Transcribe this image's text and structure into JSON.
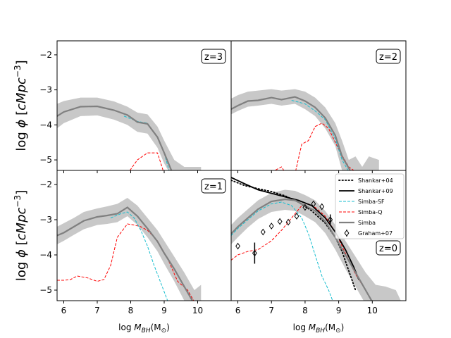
{
  "chart_data": {
    "type": "line",
    "title": "",
    "xlabel_prefix": "log ",
    "xlabel_math": "M",
    "xlabel_sub": "BH",
    "xlabel_unit": "(M",
    "xlabel_unit_sub": "⊙",
    "xlabel_unit_close": ")",
    "ylabel_prefix": "log ",
    "ylabel_phi": "ϕ",
    "ylabel_bracket_open": " [",
    "ylabel_unit": "cMpc",
    "ylabel_exp": "−3",
    "ylabel_bracket_close": "]",
    "xlim": [
      5.8,
      11.0
    ],
    "ylim": [
      -5.3,
      -1.6
    ],
    "xticks": [
      6,
      7,
      8,
      9,
      10
    ],
    "xtick_labels": [
      "6",
      "7",
      "8",
      "9",
      "10"
    ],
    "yticks": [
      -2,
      -3,
      -4,
      -5
    ],
    "ytick_labels": [
      "−2",
      "−3",
      "−4",
      "−5"
    ],
    "legend": [
      "Shankar+04",
      "Shankar+09",
      "Simba-SF",
      "Simba-Q",
      "Simba",
      "Graham+07"
    ],
    "colors": {
      "simba": "#808080",
      "band": "#c8c8c8",
      "sf": "#17becf",
      "q": "#ff0000",
      "obs": "#000000"
    },
    "panels": [
      {
        "redshift_label": "z=3",
        "label_pos": "top-right",
        "simba": {
          "x": [
            5.8,
            6.0,
            6.5,
            7.0,
            7.5,
            7.9,
            8.2,
            8.5,
            8.8,
            9.0,
            9.3
          ],
          "y": [
            -3.75,
            -3.63,
            -3.48,
            -3.47,
            -3.58,
            -3.72,
            -3.92,
            -3.97,
            -4.35,
            -4.8,
            -5.5
          ]
        },
        "simba_band": {
          "x": [
            5.8,
            6.0,
            6.5,
            7.0,
            7.5,
            7.9,
            8.2,
            8.5,
            8.8,
            9.0,
            9.3,
            9.6,
            9.9,
            10.1
          ],
          "upper": [
            -3.4,
            -3.32,
            -3.22,
            -3.22,
            -3.33,
            -3.48,
            -3.65,
            -3.7,
            -4.05,
            -4.45,
            -5.0,
            -5.2,
            -5.2,
            -5.2
          ],
          "lower": [
            -4.1,
            -3.95,
            -3.75,
            -3.73,
            -3.85,
            -4.0,
            -4.2,
            -4.25,
            -4.65,
            -5.1,
            -5.6,
            -5.6,
            -5.6,
            -5.6
          ]
        },
        "simba_sf": {
          "x": [
            7.8,
            8.2,
            8.5,
            8.8,
            9.0,
            9.2
          ],
          "y": [
            -3.75,
            -3.9,
            -3.95,
            -4.35,
            -4.8,
            -5.5
          ]
        },
        "simba_q": {
          "x": [
            7.9,
            8.2,
            8.5,
            8.8,
            9.0
          ],
          "y": [
            -5.4,
            -5.0,
            -4.8,
            -4.8,
            -5.4
          ]
        }
      },
      {
        "redshift_label": "z=2",
        "label_pos": "top-right",
        "simba": {
          "x": [
            5.8,
            6.0,
            6.3,
            6.6,
            7.0,
            7.3,
            7.7,
            8.0,
            8.3,
            8.6,
            8.9,
            9.1,
            9.4
          ],
          "y": [
            -3.55,
            -3.45,
            -3.32,
            -3.3,
            -3.22,
            -3.28,
            -3.2,
            -3.32,
            -3.5,
            -3.8,
            -4.3,
            -4.9,
            -5.4
          ]
        },
        "simba_band": {
          "x": [
            5.8,
            6.0,
            6.3,
            6.6,
            7.0,
            7.3,
            7.7,
            8.0,
            8.3,
            8.6,
            8.9,
            9.1,
            9.3,
            9.5,
            9.7,
            9.9,
            10.2
          ],
          "upper": [
            -3.25,
            -3.15,
            -3.05,
            -3.02,
            -2.98,
            -3.02,
            -2.98,
            -3.05,
            -3.22,
            -3.5,
            -3.95,
            -4.45,
            -5.0,
            -4.9,
            -5.2,
            -4.9,
            -5.0
          ],
          "lower": [
            -3.7,
            -3.6,
            -3.48,
            -3.45,
            -3.4,
            -3.45,
            -3.4,
            -3.55,
            -3.75,
            -4.1,
            -4.6,
            -5.3,
            -5.6,
            -5.6,
            -5.6,
            -5.6,
            -5.6
          ]
        },
        "simba_sf": {
          "x": [
            7.6,
            8.0,
            8.3,
            8.6,
            8.9,
            9.1,
            9.4
          ],
          "y": [
            -3.3,
            -3.4,
            -3.6,
            -3.85,
            -4.4,
            -5.0,
            -5.5
          ]
        },
        "simba_q": {
          "x": [
            6.9,
            7.3,
            7.5,
            7.7,
            7.9,
            8.1,
            8.3,
            8.5,
            8.7,
            9.0,
            9.3,
            9.6
          ],
          "y": [
            -5.4,
            -5.2,
            -5.5,
            -5.4,
            -4.55,
            -4.45,
            -4.05,
            -3.95,
            -4.1,
            -4.7,
            -5.2,
            -5.4
          ]
        }
      },
      {
        "redshift_label": "z=1",
        "label_pos": "top-right",
        "simba": {
          "x": [
            5.8,
            6.0,
            6.3,
            6.6,
            7.0,
            7.3,
            7.6,
            7.9,
            8.2,
            8.5,
            8.8,
            9.0,
            9.3,
            9.6,
            9.9
          ],
          "y": [
            -3.45,
            -3.37,
            -3.2,
            -3.03,
            -2.92,
            -2.88,
            -2.83,
            -2.65,
            -2.9,
            -3.25,
            -3.62,
            -3.95,
            -4.4,
            -4.9,
            -5.4
          ]
        },
        "simba_band": {
          "x": [
            5.8,
            6.0,
            6.3,
            6.6,
            7.0,
            7.3,
            7.6,
            7.9,
            8.2,
            8.5,
            8.8,
            9.0,
            9.3,
            9.6,
            9.9,
            10.1
          ],
          "upper": [
            -3.2,
            -3.1,
            -2.95,
            -2.78,
            -2.68,
            -2.62,
            -2.55,
            -2.38,
            -2.6,
            -2.95,
            -3.3,
            -3.6,
            -4.05,
            -4.5,
            -5.0,
            -4.85
          ],
          "lower": [
            -3.7,
            -3.6,
            -3.43,
            -3.27,
            -3.15,
            -3.12,
            -3.07,
            -2.9,
            -3.15,
            -3.5,
            -3.9,
            -4.25,
            -4.75,
            -5.3,
            -5.6,
            -5.6
          ]
        },
        "simba_sf": {
          "x": [
            7.4,
            7.7,
            7.9,
            8.1,
            8.3,
            8.5,
            8.7,
            8.9,
            9.1,
            9.3
          ],
          "y": [
            -2.95,
            -2.83,
            -2.78,
            -2.95,
            -3.3,
            -3.75,
            -4.3,
            -4.8,
            -5.3,
            -5.6
          ]
        },
        "simba_q": {
          "x": [
            5.8,
            6.0,
            6.2,
            6.4,
            6.7,
            7.0,
            7.2,
            7.4,
            7.6,
            7.9,
            8.1,
            8.3,
            8.5,
            8.8,
            9.1,
            9.4,
            9.7,
            10.0
          ],
          "y": [
            -4.72,
            -4.72,
            -4.7,
            -4.6,
            -4.65,
            -4.75,
            -4.7,
            -4.3,
            -3.5,
            -3.12,
            -3.15,
            -3.2,
            -3.3,
            -3.6,
            -4.1,
            -4.75,
            -5.0,
            -5.5
          ]
        }
      },
      {
        "redshift_label": "z=0",
        "label_pos": "right",
        "shankar04": {
          "x": [
            5.8,
            6.2,
            6.6,
            7.0,
            7.4,
            7.8,
            8.2,
            8.6,
            8.9,
            9.1,
            9.3,
            9.5
          ],
          "y": [
            -1.88,
            -2.03,
            -2.12,
            -2.2,
            -2.32,
            -2.5,
            -2.75,
            -3.1,
            -3.5,
            -3.9,
            -4.45,
            -5.0
          ]
        },
        "shankar09": {
          "x": [
            5.8,
            6.2,
            6.6,
            7.0,
            7.4,
            7.8,
            8.2,
            8.6,
            8.9,
            9.2,
            9.45,
            9.6
          ],
          "y": [
            -1.8,
            -1.98,
            -2.15,
            -2.25,
            -2.35,
            -2.45,
            -2.6,
            -2.95,
            -3.35,
            -3.85,
            -4.35,
            -4.7
          ]
        },
        "simba": {
          "x": [
            5.8,
            6.0,
            6.3,
            6.6,
            7.0,
            7.4,
            7.7,
            8.0,
            8.3,
            8.6,
            8.9,
            9.2,
            9.5,
            9.8,
            10.1
          ],
          "y": [
            -3.4,
            -3.2,
            -2.95,
            -2.7,
            -2.48,
            -2.42,
            -2.45,
            -2.6,
            -2.75,
            -3.05,
            -3.5,
            -4.0,
            -4.5,
            -5.0,
            -5.5
          ]
        },
        "simba_band": {
          "x": [
            5.8,
            6.0,
            6.3,
            6.6,
            7.0,
            7.4,
            7.7,
            8.0,
            8.3,
            8.6,
            8.9,
            9.2,
            9.5,
            9.8,
            10.1,
            10.4,
            10.7,
            10.9
          ],
          "upper": [
            -3.15,
            -2.95,
            -2.7,
            -2.45,
            -2.24,
            -2.15,
            -2.18,
            -2.3,
            -2.45,
            -2.75,
            -3.15,
            -3.6,
            -4.05,
            -4.5,
            -4.85,
            -4.9,
            -5.0,
            -5.4
          ],
          "lower": [
            -3.7,
            -3.5,
            -3.22,
            -2.98,
            -2.78,
            -2.72,
            -2.75,
            -2.9,
            -3.07,
            -3.38,
            -3.85,
            -4.4,
            -4.9,
            -5.4,
            -5.6,
            -5.6,
            -5.6,
            -5.6
          ]
        },
        "simba_sf": {
          "x": [
            5.8,
            6.0,
            6.3,
            6.6,
            7.0,
            7.3,
            7.6,
            7.9,
            8.1,
            8.3,
            8.5,
            8.7,
            8.9
          ],
          "y": [
            -3.45,
            -3.25,
            -3.0,
            -2.75,
            -2.55,
            -2.5,
            -2.6,
            -2.95,
            -3.4,
            -4.0,
            -4.6,
            -5.0,
            -5.5
          ]
        },
        "simba_q": {
          "x": [
            5.8,
            6.0,
            6.3,
            6.6,
            7.0,
            7.3,
            7.6,
            7.9,
            8.1,
            8.3,
            8.6,
            8.9,
            9.2,
            9.5,
            9.8,
            10.1
          ],
          "y": [
            -4.15,
            -4.0,
            -3.9,
            -3.85,
            -3.6,
            -3.3,
            -2.95,
            -2.6,
            -2.55,
            -2.65,
            -2.9,
            -3.35,
            -3.95,
            -4.55,
            -5.0,
            -5.5
          ]
        },
        "graham07": {
          "x": [
            6.0,
            6.5,
            6.75,
            7.0,
            7.25,
            7.5,
            7.75,
            8.0,
            8.25,
            8.5,
            8.75
          ],
          "y": [
            -3.75,
            -3.95,
            -3.35,
            -3.18,
            -3.05,
            -3.07,
            -2.9,
            -2.65,
            -2.55,
            -2.63,
            -3.0
          ],
          "err": [
            0,
            0.3,
            0,
            0,
            0,
            0,
            0,
            0,
            0,
            0,
            0.15
          ]
        }
      }
    ]
  }
}
